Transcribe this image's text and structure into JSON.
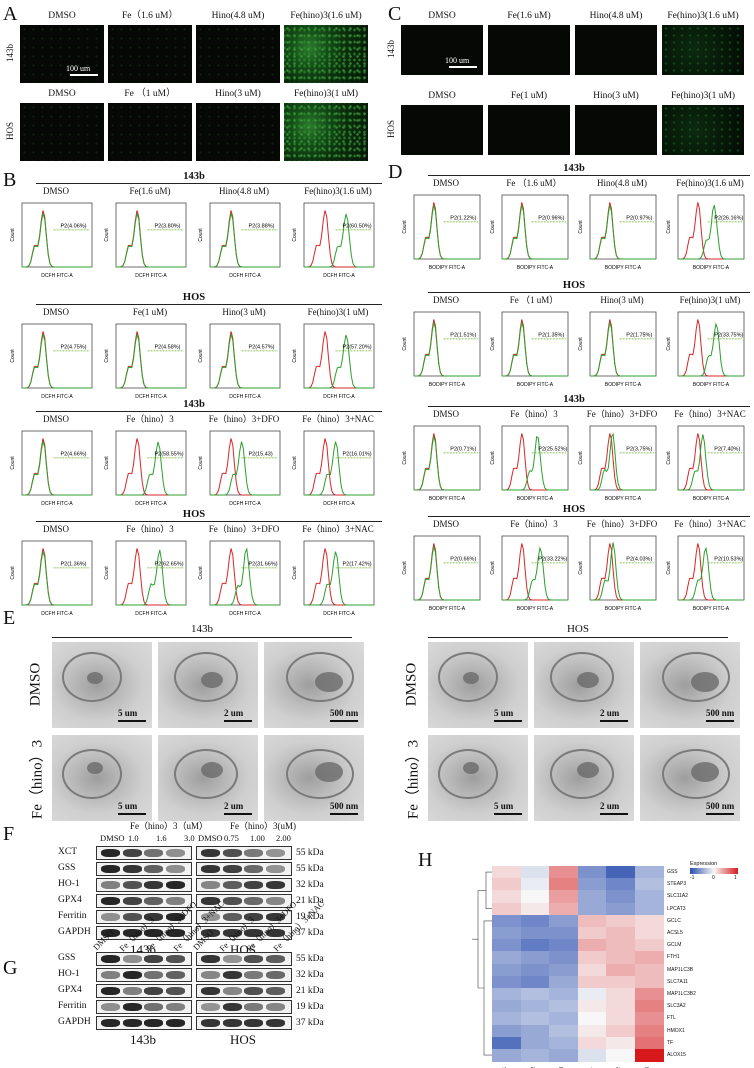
{
  "panels": {
    "A": {
      "letter": "A",
      "row1_label": "143b",
      "row2_label": "HOS",
      "row1_titles": [
        "DMSO",
        "Fe（1.6 uM）",
        "Hino(4.8 uM)",
        "Fe(hino)3(1.6 uM)"
      ],
      "row2_titles": [
        "DMSO",
        "Fe （1 uM）",
        "Hino(3 uM)",
        "Fe(hino)3(1 uM)"
      ],
      "scale": "100 um"
    },
    "C": {
      "letter": "C",
      "row1_label": "143b",
      "row2_label": "HOS",
      "row1_titles": [
        "DMSO",
        "Fe(1.6 uM)",
        "Hino(4.8 uM)",
        "Fe(hino)3(1.6 uM)"
      ],
      "row2_titles": [
        "DMSO",
        "Fe(1 uM)",
        "Hino(3 uM)",
        "Fe(hino)3(1 uM)"
      ],
      "scale": "100 um"
    },
    "B": {
      "letter": "B",
      "xaxis": "DCFH FITC-A",
      "yaxis": "Count",
      "groups": [
        {
          "label": "143b",
          "titles": [
            "DMSO",
            "Fe(1.6 uM)",
            "Hino(4.8 uM)",
            "Fe(hino)3(1.6 uM)"
          ],
          "gates": [
            "P2(4.06%)",
            "P2(3.80%)",
            "P2(3.88%)",
            "P2(60.50%)"
          ]
        },
        {
          "label": "HOS",
          "titles": [
            "DMSO",
            "Fe(1 uM)",
            "Hino(3 uM)",
            "Fe(hino)3(1 uM)"
          ],
          "gates": [
            "P2(4.75%)",
            "P2(4.58%)",
            "P2(4.57%)",
            "P2(57.20%)"
          ]
        },
        {
          "label": "143b",
          "titles": [
            "DMSO",
            "Fe（hino）3",
            "Fe（hino）3+DFO",
            "Fe（hino）3+NAC"
          ],
          "gates": [
            "P2(4.66%)",
            "P2(58.55%)",
            "P2(15.43)",
            "P2(16.01%)"
          ]
        },
        {
          "label": "HOS",
          "titles": [
            "DMSO",
            "Fe（hino）3",
            "Fe（hino）3+DFO",
            "Fe（hino）3+NAC"
          ],
          "gates": [
            "P2(1.36%)",
            "P2(62.65%)",
            "P2(31.66%)",
            "P2(17.42%)"
          ]
        }
      ]
    },
    "D": {
      "letter": "D",
      "xaxis": "BODIPY FITC-A",
      "yaxis": "Count",
      "groups": [
        {
          "label": "143b",
          "titles": [
            "DMSO",
            "Fe （1.6 uM）",
            "Hino(4.8 uM)",
            "Fe(hino)3(1.6 uM)"
          ],
          "gates": [
            "P2(1.22%)",
            "P2(0.96%)",
            "P2(0.97%)",
            "P2(26.16%)"
          ]
        },
        {
          "label": "HOS",
          "titles": [
            "DMSO",
            "Fe （1 uM）",
            "Hino(3 uM)",
            "Fe(hino)3(1 uM)"
          ],
          "gates": [
            "P2(1.51%)",
            "P2(1.35%)",
            "P2(1.75%)",
            "P2(33.75%)"
          ]
        },
        {
          "label": "143b",
          "titles": [
            "DMSO",
            "Fe（hino）3",
            "Fe（hino）3+DFO",
            "Fe（hino）3+NAC"
          ],
          "gates": [
            "P2(0.71%)",
            "P2(25.52%)",
            "P2(3.75%)",
            "P2(7.40%)"
          ]
        },
        {
          "label": "HOS",
          "titles": [
            "DMSO",
            "Fe（hino）3",
            "Fe（hino）3+DFO",
            "Fe（hino）3+NAC"
          ],
          "gates": [
            "P2(0.66%)",
            "P2(33.22%)",
            "P2(4.03%)",
            "P2(10.53%)"
          ]
        }
      ]
    },
    "E": {
      "letter": "E",
      "left_title": "143b",
      "right_title": "HOS",
      "row1_label": "DMSO",
      "row2_label": "Fe（hino）3",
      "scales": [
        "5 um",
        "2 um",
        "500 nm"
      ]
    },
    "F": {
      "letter": "F",
      "header_left": "Fe（hino）3（uM）",
      "header_right": "Fe（hino）3(uM)",
      "cols_left": [
        "DMSO",
        "1.0",
        "1.6",
        "3.0"
      ],
      "cols_right": [
        "DMSO",
        "0.75",
        "1.00",
        "2.00"
      ],
      "proteins": [
        "XCT",
        "GSS",
        "HO-1",
        "GPX4",
        "Ferritin",
        "GAPDH"
      ],
      "kda": [
        "55 kDa",
        "55 kDa",
        "32 kDa",
        "21 kDa",
        "19 kDa",
        "37 kDa"
      ],
      "cell_left": "143b",
      "cell_right": "HOS"
    },
    "G": {
      "letter": "G",
      "cols": [
        "DMSO",
        "Fe（hino）3",
        "Fe（hino）3+DFO",
        "Fe（hino）3+NAC"
      ],
      "proteins": [
        "GSS",
        "HO-1",
        "GPX4",
        "Ferritin",
        "GAPDH"
      ],
      "kda": [
        "55 kDa",
        "32 kDa",
        "21 kDa",
        "19 kDa",
        "37 kDa"
      ],
      "cell_left": "143b",
      "cell_right": "HOS"
    },
    "H": {
      "letter": "H",
      "legend_title": "Expression",
      "legend_ticks": [
        "-1",
        "0",
        "1"
      ],
      "genes": [
        "GSS",
        "STEAP3",
        "SLC11A2",
        "LPCAT3",
        "GCLC",
        "ACSL5",
        "GCLM",
        "FTH1",
        "MAP1LC3B",
        "SLC7A11",
        "MAP1LC3B2",
        "SLC3A2",
        "FTL",
        "HMOX1",
        "TF",
        "ALOX15"
      ],
      "columns": [
        "C1",
        "C2",
        "C3",
        "F1",
        "F2",
        "F3"
      ],
      "values": [
        [
          0.2,
          -0.2,
          0.7,
          -0.9,
          -1.3,
          -0.6
        ],
        [
          0.3,
          -0.1,
          0.8,
          -0.8,
          -1.0,
          -0.5
        ],
        [
          0.2,
          0.0,
          0.6,
          -0.7,
          -0.9,
          -0.6
        ],
        [
          0.3,
          0.1,
          0.5,
          -0.7,
          -0.8,
          -0.6
        ],
        [
          -0.9,
          -1.0,
          -0.8,
          0.4,
          0.3,
          0.2
        ],
        [
          -0.8,
          -0.9,
          -0.9,
          0.3,
          0.4,
          0.2
        ],
        [
          -0.9,
          -1.1,
          -1.0,
          0.5,
          0.4,
          0.3
        ],
        [
          -0.7,
          -0.8,
          -0.9,
          0.3,
          0.4,
          0.5
        ],
        [
          -0.8,
          -0.9,
          -0.8,
          0.2,
          0.5,
          0.4
        ],
        [
          -0.9,
          -1.0,
          -0.7,
          0.3,
          0.3,
          0.4
        ],
        [
          -0.6,
          -0.5,
          -0.6,
          -0.1,
          0.2,
          0.7
        ],
        [
          -0.7,
          -0.6,
          -0.5,
          0.1,
          0.2,
          0.8
        ],
        [
          -0.6,
          -0.5,
          -0.6,
          0.0,
          0.2,
          0.7
        ],
        [
          -0.8,
          -0.7,
          -0.5,
          0.1,
          0.3,
          0.8
        ],
        [
          -1.2,
          -0.7,
          -0.6,
          0.2,
          0.1,
          0.9
        ],
        [
          -0.7,
          -0.6,
          -0.7,
          -0.2,
          0.0,
          1.6
        ]
      ],
      "colors": {
        "low": "#2b4fb0",
        "mid": "#f7f7f7",
        "high": "#d7191c"
      }
    }
  }
}
